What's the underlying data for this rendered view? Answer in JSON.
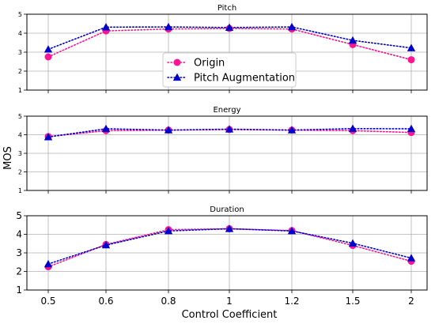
{
  "chart_data": [
    {
      "type": "line",
      "title": "Pitch",
      "x": [
        "0.5",
        "0.6",
        "0.8",
        "1",
        "1.2",
        "1.5",
        "2"
      ],
      "ylim": [
        1,
        5
      ],
      "yticks": [
        1,
        2,
        3,
        4,
        5
      ],
      "grid": true,
      "legend": "center",
      "series": [
        {
          "name": "Origin",
          "values": [
            2.75,
            4.12,
            4.22,
            4.25,
            4.22,
            3.4,
            2.6
          ],
          "color": "#ff1493",
          "marker": "circle"
        },
        {
          "name": "Pitch Augmentation",
          "values": [
            3.15,
            4.32,
            4.33,
            4.3,
            4.33,
            3.62,
            3.22
          ],
          "color": "#0000cc",
          "marker": "triangle"
        }
      ]
    },
    {
      "type": "line",
      "title": "Energy",
      "x": [
        "0.5",
        "0.6",
        "0.8",
        "1",
        "1.2",
        "1.5",
        "2"
      ],
      "ylim": [
        1,
        5
      ],
      "yticks": [
        1,
        2,
        3,
        4,
        5
      ],
      "grid": true,
      "series": [
        {
          "name": "Origin",
          "values": [
            3.9,
            4.22,
            4.25,
            4.28,
            4.25,
            4.22,
            4.12
          ],
          "color": "#ff1493",
          "marker": "circle"
        },
        {
          "name": "Pitch Augmentation",
          "values": [
            3.88,
            4.32,
            4.25,
            4.3,
            4.25,
            4.33,
            4.32
          ],
          "color": "#0000cc",
          "marker": "triangle"
        }
      ]
    },
    {
      "type": "line",
      "title": "Duration",
      "x": [
        "0.5",
        "0.6",
        "0.8",
        "1",
        "1.2",
        "1.5",
        "2"
      ],
      "ylim": [
        1,
        5
      ],
      "yticks": [
        1,
        2,
        3,
        4,
        5
      ],
      "grid": true,
      "xlabel": "Control Coefficient",
      "series": [
        {
          "name": "Origin",
          "values": [
            2.25,
            3.45,
            4.25,
            4.3,
            4.2,
            3.4,
            2.55
          ],
          "color": "#ff1493",
          "marker": "circle"
        },
        {
          "name": "Pitch Augmentation",
          "values": [
            2.4,
            3.42,
            4.18,
            4.3,
            4.18,
            3.52,
            2.72
          ],
          "color": "#0000cc",
          "marker": "triangle"
        }
      ]
    }
  ],
  "shared_ylabel": "MOS"
}
